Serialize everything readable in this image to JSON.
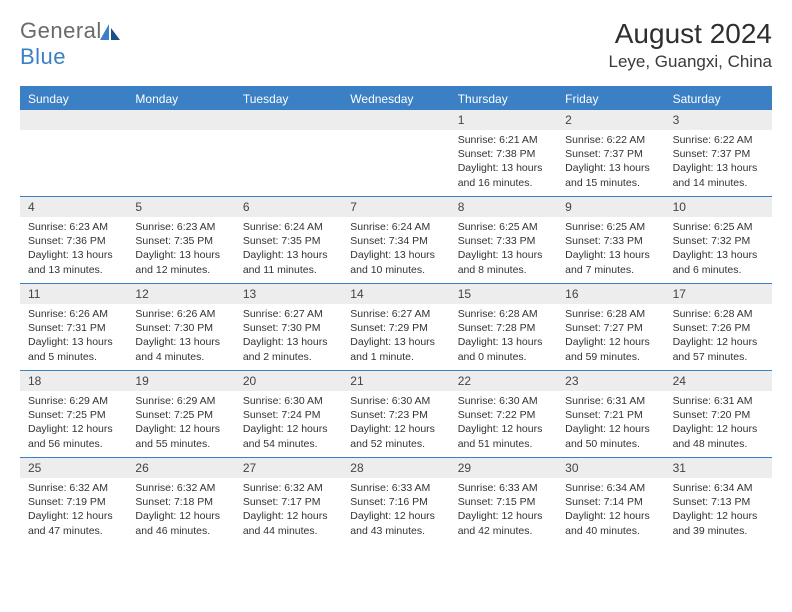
{
  "logo": {
    "textA": "General",
    "textB": "Blue"
  },
  "title": "August 2024",
  "location": "Leye, Guangxi, China",
  "colors": {
    "accent": "#3b7fc4",
    "headerText": "#ffffff",
    "dayNumBg": "#ededed",
    "text": "#333333"
  },
  "dayNames": [
    "Sunday",
    "Monday",
    "Tuesday",
    "Wednesday",
    "Thursday",
    "Friday",
    "Saturday"
  ],
  "weeks": [
    [
      {
        "n": "",
        "sr": "",
        "ss": "",
        "dl": ""
      },
      {
        "n": "",
        "sr": "",
        "ss": "",
        "dl": ""
      },
      {
        "n": "",
        "sr": "",
        "ss": "",
        "dl": ""
      },
      {
        "n": "",
        "sr": "",
        "ss": "",
        "dl": ""
      },
      {
        "n": "1",
        "sr": "6:21 AM",
        "ss": "7:38 PM",
        "dl": "13 hours and 16 minutes."
      },
      {
        "n": "2",
        "sr": "6:22 AM",
        "ss": "7:37 PM",
        "dl": "13 hours and 15 minutes."
      },
      {
        "n": "3",
        "sr": "6:22 AM",
        "ss": "7:37 PM",
        "dl": "13 hours and 14 minutes."
      }
    ],
    [
      {
        "n": "4",
        "sr": "6:23 AM",
        "ss": "7:36 PM",
        "dl": "13 hours and 13 minutes."
      },
      {
        "n": "5",
        "sr": "6:23 AM",
        "ss": "7:35 PM",
        "dl": "13 hours and 12 minutes."
      },
      {
        "n": "6",
        "sr": "6:24 AM",
        "ss": "7:35 PM",
        "dl": "13 hours and 11 minutes."
      },
      {
        "n": "7",
        "sr": "6:24 AM",
        "ss": "7:34 PM",
        "dl": "13 hours and 10 minutes."
      },
      {
        "n": "8",
        "sr": "6:25 AM",
        "ss": "7:33 PM",
        "dl": "13 hours and 8 minutes."
      },
      {
        "n": "9",
        "sr": "6:25 AM",
        "ss": "7:33 PM",
        "dl": "13 hours and 7 minutes."
      },
      {
        "n": "10",
        "sr": "6:25 AM",
        "ss": "7:32 PM",
        "dl": "13 hours and 6 minutes."
      }
    ],
    [
      {
        "n": "11",
        "sr": "6:26 AM",
        "ss": "7:31 PM",
        "dl": "13 hours and 5 minutes."
      },
      {
        "n": "12",
        "sr": "6:26 AM",
        "ss": "7:30 PM",
        "dl": "13 hours and 4 minutes."
      },
      {
        "n": "13",
        "sr": "6:27 AM",
        "ss": "7:30 PM",
        "dl": "13 hours and 2 minutes."
      },
      {
        "n": "14",
        "sr": "6:27 AM",
        "ss": "7:29 PM",
        "dl": "13 hours and 1 minute."
      },
      {
        "n": "15",
        "sr": "6:28 AM",
        "ss": "7:28 PM",
        "dl": "13 hours and 0 minutes."
      },
      {
        "n": "16",
        "sr": "6:28 AM",
        "ss": "7:27 PM",
        "dl": "12 hours and 59 minutes."
      },
      {
        "n": "17",
        "sr": "6:28 AM",
        "ss": "7:26 PM",
        "dl": "12 hours and 57 minutes."
      }
    ],
    [
      {
        "n": "18",
        "sr": "6:29 AM",
        "ss": "7:25 PM",
        "dl": "12 hours and 56 minutes."
      },
      {
        "n": "19",
        "sr": "6:29 AM",
        "ss": "7:25 PM",
        "dl": "12 hours and 55 minutes."
      },
      {
        "n": "20",
        "sr": "6:30 AM",
        "ss": "7:24 PM",
        "dl": "12 hours and 54 minutes."
      },
      {
        "n": "21",
        "sr": "6:30 AM",
        "ss": "7:23 PM",
        "dl": "12 hours and 52 minutes."
      },
      {
        "n": "22",
        "sr": "6:30 AM",
        "ss": "7:22 PM",
        "dl": "12 hours and 51 minutes."
      },
      {
        "n": "23",
        "sr": "6:31 AM",
        "ss": "7:21 PM",
        "dl": "12 hours and 50 minutes."
      },
      {
        "n": "24",
        "sr": "6:31 AM",
        "ss": "7:20 PM",
        "dl": "12 hours and 48 minutes."
      }
    ],
    [
      {
        "n": "25",
        "sr": "6:32 AM",
        "ss": "7:19 PM",
        "dl": "12 hours and 47 minutes."
      },
      {
        "n": "26",
        "sr": "6:32 AM",
        "ss": "7:18 PM",
        "dl": "12 hours and 46 minutes."
      },
      {
        "n": "27",
        "sr": "6:32 AM",
        "ss": "7:17 PM",
        "dl": "12 hours and 44 minutes."
      },
      {
        "n": "28",
        "sr": "6:33 AM",
        "ss": "7:16 PM",
        "dl": "12 hours and 43 minutes."
      },
      {
        "n": "29",
        "sr": "6:33 AM",
        "ss": "7:15 PM",
        "dl": "12 hours and 42 minutes."
      },
      {
        "n": "30",
        "sr": "6:34 AM",
        "ss": "7:14 PM",
        "dl": "12 hours and 40 minutes."
      },
      {
        "n": "31",
        "sr": "6:34 AM",
        "ss": "7:13 PM",
        "dl": "12 hours and 39 minutes."
      }
    ]
  ],
  "labels": {
    "sunrise": "Sunrise:",
    "sunset": "Sunset:",
    "daylight": "Daylight:"
  }
}
